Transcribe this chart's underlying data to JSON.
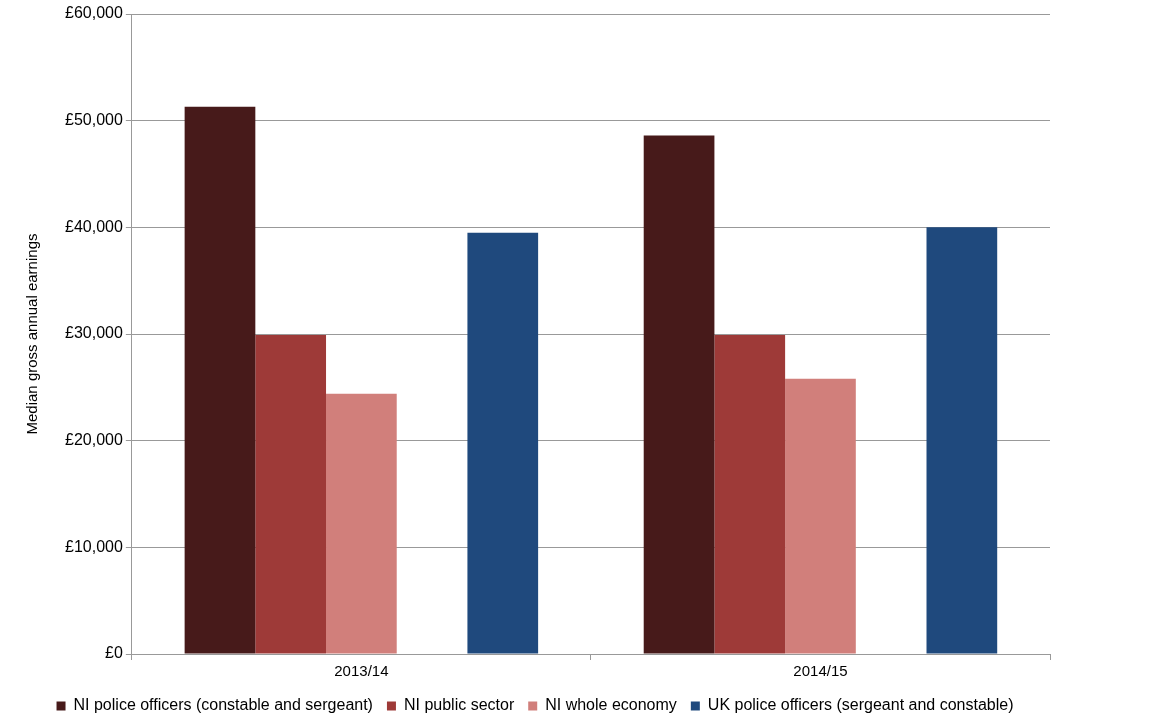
{
  "chart_data": {
    "type": "bar",
    "ylabel": "Median gross annual earnings",
    "categories": [
      "2013/14",
      "2014/15"
    ],
    "series": [
      {
        "name": "NI police officers (constable and sergeant)",
        "color": "#471a1a",
        "values": [
          51300,
          48600
        ]
      },
      {
        "name": "NI public sector",
        "color": "#9e3a38",
        "values": [
          29900,
          29900
        ]
      },
      {
        "name": "NI whole economy",
        "color": "#d17f7b",
        "values": [
          24400,
          25800
        ]
      },
      {
        "color": "#ffffff",
        "values": [
          null,
          null
        ]
      },
      {
        "name": "UK police officers (sergeant and constable)",
        "color": "#1f497d",
        "values": [
          39500,
          40000
        ]
      }
    ],
    "ylim": [
      0,
      60000
    ],
    "yticks": [
      {
        "value": 0,
        "label": "£0"
      },
      {
        "value": 10000,
        "label": "£10,000"
      },
      {
        "value": 20000,
        "label": "£20,000"
      },
      {
        "value": 30000,
        "label": "£30,000"
      },
      {
        "value": 40000,
        "label": "£40,000"
      },
      {
        "value": 50000,
        "label": "£50,000"
      },
      {
        "value": 60000,
        "label": "£60,000"
      }
    ],
    "grid": "y",
    "legend": "bottom"
  }
}
